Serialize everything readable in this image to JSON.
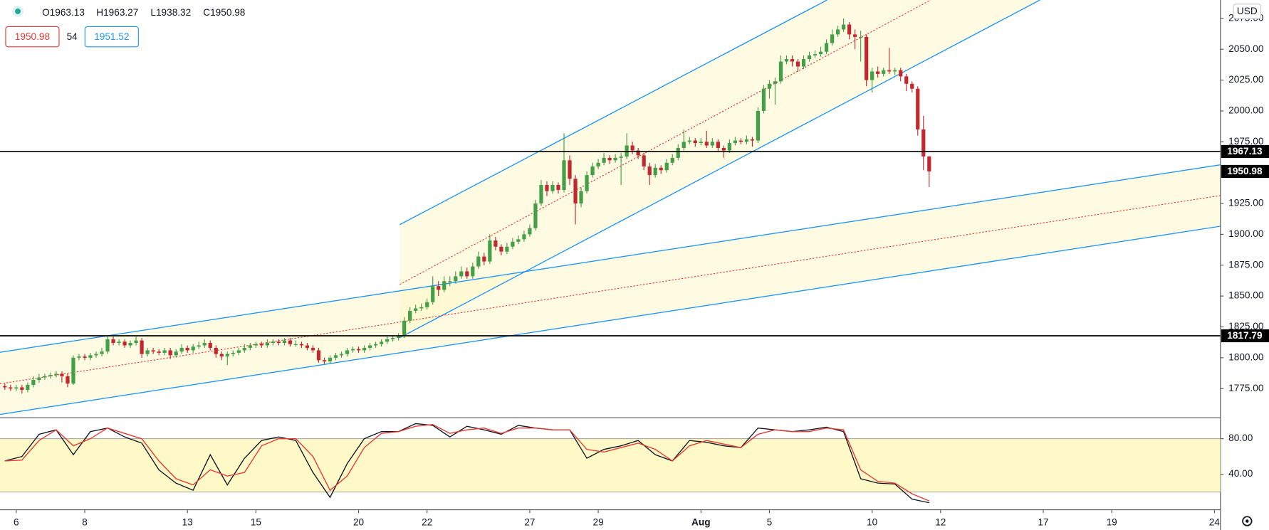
{
  "header": {
    "ohlc": [
      "O1963.13",
      "H1963.27",
      "L1938.32",
      "C1950.98"
    ],
    "sell": 1950.98,
    "spread": 54,
    "buy": 1951.52,
    "currency": "USD"
  },
  "chart_data": [
    {
      "type": "candlestick",
      "up_color": "#43a047",
      "down_color": "#c2282e",
      "xlim": [
        -0.85,
        213.05
      ],
      "ylim": [
        1751.4,
        2089.9
      ],
      "yticks": [
        {
          "value": 2075,
          "label": "2075.00"
        },
        {
          "value": 2050,
          "label": "2050.00"
        },
        {
          "value": 2025,
          "label": "2025.00"
        },
        {
          "value": 2000,
          "label": "2000.00"
        },
        {
          "value": 1975,
          "label": "1975.00"
        },
        {
          "value": 1925,
          "label": "1925.00"
        },
        {
          "value": 1900,
          "label": "1900.00"
        },
        {
          "value": 1875,
          "label": "1875.00"
        },
        {
          "value": 1850,
          "label": "1850.00"
        },
        {
          "value": 1825,
          "label": "1825.00"
        },
        {
          "value": 1800,
          "label": "1800.00"
        },
        {
          "value": 1775,
          "label": "1775.00"
        }
      ],
      "xticks": [
        {
          "value": 2,
          "label": "6"
        },
        {
          "value": 14,
          "label": "8"
        },
        {
          "value": 32,
          "label": "13"
        },
        {
          "value": 44,
          "label": "15"
        },
        {
          "value": 62,
          "label": "20"
        },
        {
          "value": 74,
          "label": "22"
        },
        {
          "value": 92,
          "label": "27"
        },
        {
          "value": 104,
          "label": "29"
        },
        {
          "value": 122,
          "label": "Aug"
        },
        {
          "value": 134,
          "label": "5"
        },
        {
          "value": 152,
          "label": "10"
        },
        {
          "value": 164,
          "label": "12"
        },
        {
          "value": 182,
          "label": "17"
        },
        {
          "value": 194,
          "label": "19"
        },
        {
          "value": 212,
          "label": "24"
        }
      ],
      "levels": [
        1967.13,
        1817.79
      ],
      "level_color": "#000000",
      "ohlc": [
        [
          1777,
          1779,
          1774,
          1776
        ],
        [
          1776,
          1778,
          1773,
          1775
        ],
        [
          1775,
          1778,
          1773,
          1776
        ],
        [
          1776,
          1778,
          1771,
          1774
        ],
        [
          1774,
          1780,
          1772,
          1778
        ],
        [
          1778,
          1785,
          1776,
          1782
        ],
        [
          1782,
          1787,
          1780,
          1784
        ],
        [
          1784,
          1787,
          1782,
          1785
        ],
        [
          1785,
          1788,
          1783,
          1786
        ],
        [
          1786,
          1789,
          1784,
          1787
        ],
        [
          1787,
          1789,
          1780,
          1785
        ],
        [
          1785,
          1787,
          1776,
          1779
        ],
        [
          1779,
          1802,
          1778,
          1800
        ],
        [
          1800,
          1803,
          1798,
          1801
        ],
        [
          1801,
          1803,
          1798,
          1800
        ],
        [
          1800,
          1804,
          1798,
          1802
        ],
        [
          1802,
          1805,
          1800,
          1803
        ],
        [
          1803,
          1808,
          1801,
          1805
        ],
        [
          1805,
          1818,
          1803,
          1815
        ],
        [
          1815,
          1817,
          1810,
          1812
        ],
        [
          1812,
          1815,
          1810,
          1813
        ],
        [
          1813,
          1815,
          1808,
          1810
        ],
        [
          1810,
          1814,
          1808,
          1812
        ],
        [
          1812,
          1817,
          1810,
          1814
        ],
        [
          1814,
          1816,
          1800,
          1803
        ],
        [
          1803,
          1808,
          1801,
          1806
        ],
        [
          1806,
          1808,
          1803,
          1805
        ],
        [
          1805,
          1807,
          1802,
          1804
        ],
        [
          1804,
          1808,
          1802,
          1806
        ],
        [
          1806,
          1808,
          1799,
          1802
        ],
        [
          1802,
          1807,
          1800,
          1805
        ],
        [
          1805,
          1811,
          1803,
          1808
        ],
        [
          1808,
          1810,
          1804,
          1806
        ],
        [
          1806,
          1811,
          1804,
          1809
        ],
        [
          1809,
          1813,
          1807,
          1810
        ],
        [
          1810,
          1815,
          1808,
          1812
        ],
        [
          1812,
          1814,
          1806,
          1808
        ],
        [
          1808,
          1810,
          1800,
          1803
        ],
        [
          1803,
          1805,
          1798,
          1801
        ],
        [
          1801,
          1805,
          1794,
          1803
        ],
        [
          1803,
          1806,
          1801,
          1804
        ],
        [
          1804,
          1808,
          1802,
          1806
        ],
        [
          1806,
          1811,
          1804,
          1808
        ],
        [
          1808,
          1812,
          1806,
          1810
        ],
        [
          1810,
          1813,
          1808,
          1811
        ],
        [
          1811,
          1813,
          1808,
          1810
        ],
        [
          1810,
          1815,
          1808,
          1812
        ],
        [
          1812,
          1815,
          1810,
          1813
        ],
        [
          1813,
          1815,
          1810,
          1812
        ],
        [
          1812,
          1816,
          1810,
          1814
        ],
        [
          1814,
          1816,
          1809,
          1811
        ],
        [
          1811,
          1814,
          1809,
          1811
        ],
        [
          1811,
          1813,
          1808,
          1810
        ],
        [
          1810,
          1812,
          1806,
          1808
        ],
        [
          1808,
          1810,
          1804,
          1806
        ],
        [
          1806,
          1808,
          1796,
          1798
        ],
        [
          1798,
          1800,
          1795,
          1797
        ],
        [
          1797,
          1802,
          1795,
          1800
        ],
        [
          1800,
          1804,
          1798,
          1802
        ],
        [
          1802,
          1805,
          1800,
          1803
        ],
        [
          1803,
          1808,
          1801,
          1806
        ],
        [
          1806,
          1809,
          1804,
          1807
        ],
        [
          1807,
          1809,
          1804,
          1806
        ],
        [
          1806,
          1810,
          1804,
          1808
        ],
        [
          1808,
          1812,
          1806,
          1810
        ],
        [
          1810,
          1813,
          1808,
          1811
        ],
        [
          1811,
          1815,
          1809,
          1813
        ],
        [
          1813,
          1818,
          1811,
          1815
        ],
        [
          1815,
          1818,
          1813,
          1816
        ],
        [
          1816,
          1820,
          1814,
          1818
        ],
        [
          1818,
          1833,
          1816,
          1830
        ],
        [
          1830,
          1841,
          1828,
          1838
        ],
        [
          1838,
          1843,
          1836,
          1840
        ],
        [
          1840,
          1844,
          1838,
          1841
        ],
        [
          1841,
          1848,
          1839,
          1845
        ],
        [
          1845,
          1866,
          1843,
          1858
        ],
        [
          1858,
          1862,
          1850,
          1855
        ],
        [
          1855,
          1866,
          1853,
          1862
        ],
        [
          1862,
          1866,
          1858,
          1862
        ],
        [
          1862,
          1870,
          1860,
          1866
        ],
        [
          1866,
          1874,
          1864,
          1870
        ],
        [
          1870,
          1873,
          1864,
          1866
        ],
        [
          1866,
          1877,
          1864,
          1874
        ],
        [
          1874,
          1886,
          1872,
          1882
        ],
        [
          1882,
          1885,
          1875,
          1878
        ],
        [
          1878,
          1900,
          1876,
          1895
        ],
        [
          1895,
          1898,
          1887,
          1890
        ],
        [
          1890,
          1892,
          1883,
          1886
        ],
        [
          1886,
          1893,
          1884,
          1890
        ],
        [
          1890,
          1897,
          1888,
          1894
        ],
        [
          1894,
          1899,
          1892,
          1896
        ],
        [
          1896,
          1903,
          1894,
          1900
        ],
        [
          1900,
          1908,
          1898,
          1905
        ],
        [
          1905,
          1928,
          1903,
          1925
        ],
        [
          1925,
          1944,
          1923,
          1940
        ],
        [
          1940,
          1943,
          1931,
          1935
        ],
        [
          1935,
          1943,
          1933,
          1940
        ],
        [
          1940,
          1942,
          1933,
          1936
        ],
        [
          1936,
          1982,
          1934,
          1960
        ],
        [
          1960,
          1964,
          1940,
          1945
        ],
        [
          1945,
          1948,
          1908,
          1925
        ],
        [
          1925,
          1938,
          1922,
          1935
        ],
        [
          1935,
          1951,
          1933,
          1948
        ],
        [
          1948,
          1958,
          1946,
          1955
        ],
        [
          1955,
          1961,
          1953,
          1958
        ],
        [
          1958,
          1966,
          1956,
          1962
        ],
        [
          1962,
          1964,
          1957,
          1960
        ],
        [
          1960,
          1965,
          1958,
          1962
        ],
        [
          1962,
          1966,
          1940,
          1963
        ],
        [
          1963,
          1982,
          1961,
          1972
        ],
        [
          1972,
          1975,
          1965,
          1968
        ],
        [
          1968,
          1970,
          1961,
          1964
        ],
        [
          1964,
          1966,
          1952,
          1955
        ],
        [
          1955,
          1958,
          1940,
          1948
        ],
        [
          1948,
          1957,
          1946,
          1954
        ],
        [
          1954,
          1956,
          1949,
          1952
        ],
        [
          1952,
          1961,
          1950,
          1958
        ],
        [
          1958,
          1965,
          1956,
          1962
        ],
        [
          1962,
          1973,
          1960,
          1970
        ],
        [
          1970,
          1985,
          1968,
          1975
        ],
        [
          1975,
          1979,
          1973,
          1976
        ],
        [
          1976,
          1978,
          1971,
          1974
        ],
        [
          1974,
          1978,
          1972,
          1975
        ],
        [
          1975,
          1984,
          1970,
          1972
        ],
        [
          1972,
          1978,
          1970,
          1975
        ],
        [
          1975,
          1977,
          1967,
          1970
        ],
        [
          1970,
          1972,
          1962,
          1968
        ],
        [
          1968,
          1977,
          1966,
          1974
        ],
        [
          1974,
          1979,
          1972,
          1976
        ],
        [
          1976,
          1978,
          1973,
          1975
        ],
        [
          1975,
          1980,
          1973,
          1977
        ],
        [
          1977,
          1979,
          1971,
          1976
        ],
        [
          1976,
          2003,
          1974,
          2000
        ],
        [
          2000,
          2021,
          1998,
          2018
        ],
        [
          2018,
          2025,
          2010,
          2022
        ],
        [
          2022,
          2027,
          2005,
          2024
        ],
        [
          2024,
          2045,
          2022,
          2040
        ],
        [
          2040,
          2045,
          2038,
          2042
        ],
        [
          2042,
          2045,
          2036,
          2040
        ],
        [
          2040,
          2042,
          2032,
          2036
        ],
        [
          2036,
          2045,
          2034,
          2042
        ],
        [
          2042,
          2048,
          2040,
          2045
        ],
        [
          2045,
          2049,
          2043,
          2046
        ],
        [
          2046,
          2052,
          2044,
          2048
        ],
        [
          2048,
          2058,
          2046,
          2055
        ],
        [
          2055,
          2066,
          2053,
          2062
        ],
        [
          2062,
          2069,
          2060,
          2066
        ],
        [
          2066,
          2075,
          2064,
          2070
        ],
        [
          2070,
          2072,
          2058,
          2062
        ],
        [
          2062,
          2066,
          2050,
          2060
        ],
        [
          2060,
          2065,
          2040,
          2060
        ],
        [
          2060,
          2062,
          2020,
          2025
        ],
        [
          2025,
          2035,
          2015,
          2032
        ],
        [
          2032,
          2036,
          2027,
          2030
        ],
        [
          2030,
          2035,
          2028,
          2033
        ],
        [
          2033,
          2051,
          2030,
          2032
        ],
        [
          2032,
          2035,
          2029,
          2033
        ],
        [
          2033,
          2035,
          2024,
          2028
        ],
        [
          2028,
          2030,
          2016,
          2022
        ],
        [
          2022,
          2024,
          2015,
          2018
        ],
        [
          2018,
          2020,
          1980,
          1985
        ],
        [
          1985,
          1996,
          1952,
          1963.13
        ],
        [
          1963.13,
          1963.27,
          1938.32,
          1950.98
        ]
      ]
    },
    {
      "type": "line",
      "xlim": [
        -0.85,
        213.05
      ],
      "ylim": [
        0,
        103.6
      ],
      "yticks": [
        {
          "value": 80,
          "label": "80.00"
        },
        {
          "value": 40,
          "label": "40.00"
        }
      ],
      "bands": [
        20,
        80
      ],
      "band_color": "#fff7b0",
      "x": [
        0,
        3,
        6,
        9,
        12,
        15,
        18,
        21,
        24,
        27,
        30,
        33,
        36,
        39,
        42,
        45,
        48,
        51,
        54,
        57,
        60,
        63,
        66,
        69,
        72,
        75,
        78,
        81,
        84,
        87,
        90,
        93,
        96,
        99,
        102,
        105,
        108,
        111,
        114,
        117,
        120,
        123,
        126,
        129,
        132,
        135,
        138,
        141,
        144,
        147,
        150,
        153,
        156,
        159,
        162
      ],
      "series": [
        {
          "color": "#131722",
          "values": [
            55,
            60,
            85,
            90,
            62,
            88,
            92,
            82,
            75,
            45,
            30,
            22,
            62,
            28,
            58,
            78,
            82,
            78,
            42,
            14,
            52,
            80,
            88,
            88,
            97,
            95,
            82,
            94,
            90,
            85,
            95,
            92,
            90,
            90,
            58,
            68,
            72,
            78,
            62,
            55,
            78,
            76,
            72,
            70,
            92,
            90,
            88,
            90,
            93,
            88,
            35,
            30,
            29,
            12,
            8
          ]
        },
        {
          "color": "#e53935",
          "values": [
            55,
            56,
            78,
            90,
            72,
            80,
            92,
            86,
            80,
            55,
            35,
            28,
            45,
            38,
            42,
            72,
            80,
            80,
            60,
            22,
            38,
            70,
            86,
            88,
            94,
            96,
            86,
            90,
            92,
            86,
            92,
            92,
            90,
            90,
            68,
            65,
            70,
            75,
            68,
            55,
            72,
            78,
            74,
            70,
            85,
            90,
            88,
            88,
            92,
            90,
            45,
            32,
            30,
            18,
            10
          ]
        }
      ]
    }
  ]
}
